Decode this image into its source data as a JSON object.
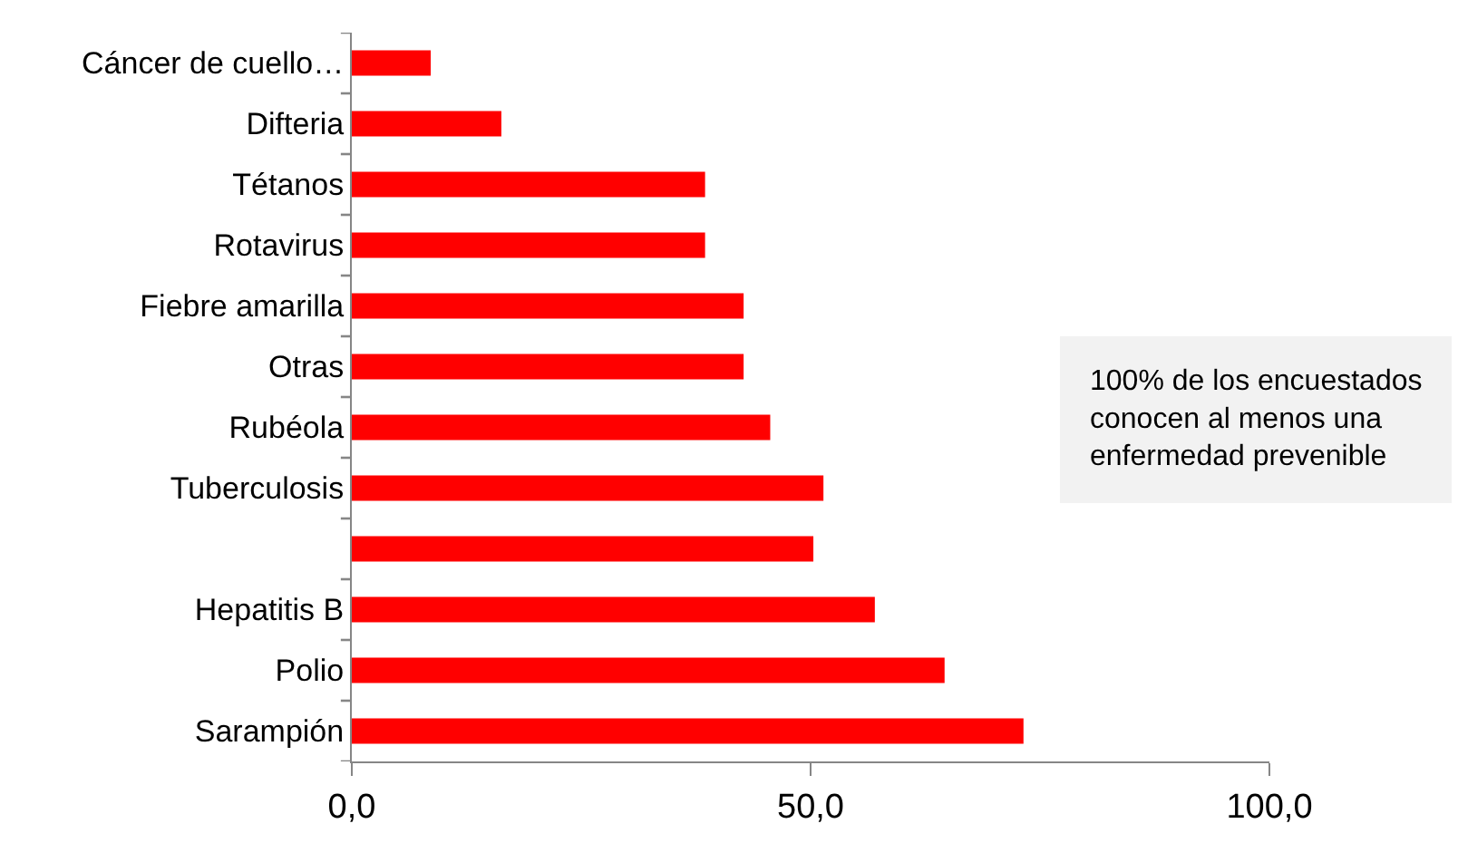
{
  "chart_data": {
    "type": "bar",
    "orientation": "horizontal",
    "categories": [
      "Cáncer de cuello…",
      "Difteria",
      "Tétanos",
      "Rotavirus",
      "Fiebre amarilla",
      "Otras",
      "Rubéola",
      "Tuberculosis",
      null,
      "Hepatitis B",
      "Polio",
      "Sarampión"
    ],
    "values": [
      8.6,
      16.3,
      38.5,
      38.5,
      42.7,
      42.7,
      45.6,
      51.4,
      50.3,
      57.0,
      64.6,
      73.2
    ],
    "color": "#ff0000",
    "xlim": [
      0,
      100
    ],
    "xticks": [
      {
        "value": 0,
        "label": "0,0"
      },
      {
        "value": 50,
        "label": "50,0"
      },
      {
        "value": 100,
        "label": "100,0"
      }
    ],
    "annotations": [
      "100% de los encuestados conocen al menos una enfermedad prevenible"
    ]
  }
}
